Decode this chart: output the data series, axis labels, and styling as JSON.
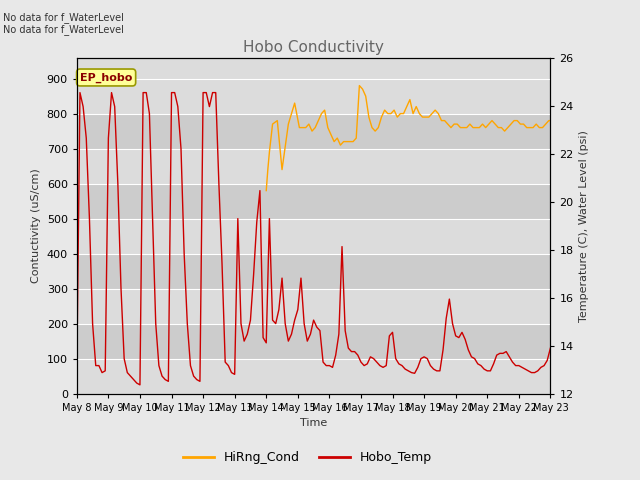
{
  "title": "Hobo Conductivity",
  "xlabel": "Time",
  "ylabel_left": "Contuctivity (uS/cm)",
  "ylabel_right": "Temperature (C), Water Level (psi)",
  "annotation_text": "No data for f_WaterLevel\nNo data for f_WaterLevel",
  "ep_hobo_label": "EP_hobo",
  "legend_entries": [
    "HiRng_Cond",
    "Hobo_Temp"
  ],
  "legend_colors": [
    "#FFA500",
    "#CC0000"
  ],
  "ylim_left": [
    0,
    960
  ],
  "ylim_right": [
    12,
    26
  ],
  "yticks_left": [
    0,
    100,
    200,
    300,
    400,
    500,
    600,
    700,
    800,
    900
  ],
  "yticks_right": [
    12,
    14,
    16,
    18,
    20,
    22,
    24,
    26
  ],
  "xtick_labels": [
    "May 8",
    "May 9",
    "May 10",
    "May 11",
    "May 12",
    "May 13",
    "May 14",
    "May 15",
    "May 16",
    "May 17",
    "May 18",
    "May 19",
    "May 20",
    "May 21",
    "May 22",
    "May 23"
  ],
  "bg_color": "#E8E8E8",
  "plot_bg_color": "#DCDCDC",
  "band_color": "#C8C8C8",
  "title_color": "#666666",
  "hobo_cond_color": "#FFA500",
  "hobo_temp_color": "#CC0000",
  "hobo_cond_x": [
    14.0,
    14.05,
    14.1,
    14.2,
    14.35,
    14.5,
    14.7,
    14.9,
    15.05,
    15.15,
    15.25,
    15.35,
    15.45,
    15.55,
    15.65,
    15.75,
    15.85,
    15.95,
    16.05,
    16.15,
    16.25,
    16.35,
    16.45,
    16.55,
    16.65,
    16.75,
    16.85,
    16.95,
    17.05,
    17.15,
    17.25,
    17.35,
    17.45,
    17.55,
    17.65,
    17.75,
    17.85,
    17.95,
    18.05,
    18.15,
    18.25,
    18.35,
    18.45,
    18.55,
    18.65,
    18.75,
    18.85,
    18.95,
    19.05,
    19.15,
    19.25,
    19.35,
    19.45,
    19.55,
    19.65,
    19.75,
    19.85,
    19.95,
    20.05,
    20.15,
    20.25,
    20.35,
    20.45,
    20.55,
    20.65,
    20.75,
    20.85,
    20.95,
    21.05,
    21.15,
    21.25,
    21.35,
    21.45,
    21.55,
    21.65,
    21.75,
    21.85,
    21.95,
    22.05,
    22.15,
    22.25,
    22.35,
    22.45,
    22.55,
    22.65,
    22.75,
    22.85,
    22.95,
    23.0
  ],
  "hobo_cond_y": [
    580,
    640,
    690,
    770,
    780,
    640,
    770,
    830,
    760,
    760,
    760,
    770,
    750,
    760,
    780,
    800,
    810,
    760,
    740,
    720,
    730,
    710,
    720,
    720,
    720,
    720,
    730,
    880,
    870,
    850,
    790,
    760,
    750,
    760,
    790,
    810,
    800,
    800,
    810,
    790,
    800,
    800,
    820,
    840,
    800,
    820,
    800,
    790,
    790,
    790,
    800,
    810,
    800,
    780,
    780,
    770,
    760,
    770,
    770,
    760,
    760,
    760,
    770,
    760,
    760,
    760,
    770,
    760,
    770,
    780,
    770,
    760,
    760,
    750,
    760,
    770,
    780,
    780,
    770,
    770,
    760,
    760,
    760,
    770,
    760,
    760,
    770,
    780,
    780
  ],
  "hobo_temp_x": [
    8.0,
    8.1,
    8.2,
    8.3,
    8.4,
    8.5,
    8.6,
    8.7,
    8.8,
    8.9,
    9.0,
    9.1,
    9.2,
    9.3,
    9.4,
    9.5,
    9.6,
    9.7,
    9.8,
    9.9,
    10.0,
    10.1,
    10.2,
    10.3,
    10.4,
    10.5,
    10.6,
    10.7,
    10.8,
    10.9,
    11.0,
    11.1,
    11.2,
    11.3,
    11.4,
    11.5,
    11.6,
    11.7,
    11.8,
    11.9,
    12.0,
    12.1,
    12.2,
    12.3,
    12.4,
    12.5,
    12.6,
    12.7,
    12.8,
    12.9,
    13.0,
    13.1,
    13.2,
    13.3,
    13.4,
    13.5,
    13.6,
    13.7,
    13.8,
    13.9,
    14.0,
    14.1,
    14.2,
    14.3,
    14.4,
    14.5,
    14.6,
    14.7,
    14.8,
    14.9,
    15.0,
    15.1,
    15.2,
    15.3,
    15.4,
    15.5,
    15.6,
    15.7,
    15.8,
    15.9,
    16.0,
    16.1,
    16.2,
    16.3,
    16.4,
    16.5,
    16.6,
    16.7,
    16.8,
    16.9,
    17.0,
    17.1,
    17.2,
    17.3,
    17.4,
    17.5,
    17.6,
    17.7,
    17.8,
    17.9,
    18.0,
    18.1,
    18.2,
    18.3,
    18.4,
    18.5,
    18.6,
    18.7,
    18.8,
    18.9,
    19.0,
    19.1,
    19.2,
    19.3,
    19.4,
    19.5,
    19.6,
    19.7,
    19.8,
    19.9,
    20.0,
    20.1,
    20.2,
    20.3,
    20.4,
    20.5,
    20.6,
    20.7,
    20.8,
    20.9,
    21.0,
    21.1,
    21.2,
    21.3,
    21.4,
    21.5,
    21.6,
    21.7,
    21.8,
    21.9,
    22.0,
    22.1,
    22.2,
    22.3,
    22.4,
    22.5,
    22.6,
    22.7,
    22.8,
    22.9,
    23.0
  ],
  "hobo_temp_y": [
    60,
    860,
    820,
    730,
    500,
    200,
    80,
    80,
    60,
    65,
    730,
    860,
    820,
    600,
    300,
    100,
    60,
    50,
    40,
    30,
    25,
    860,
    860,
    800,
    500,
    200,
    80,
    50,
    40,
    35,
    860,
    860,
    820,
    700,
    400,
    200,
    80,
    50,
    40,
    35,
    860,
    860,
    820,
    860,
    860,
    600,
    370,
    90,
    80,
    60,
    55,
    500,
    200,
    150,
    170,
    210,
    340,
    490,
    580,
    160,
    145,
    500,
    210,
    200,
    240,
    330,
    200,
    150,
    170,
    210,
    240,
    330,
    200,
    150,
    170,
    210,
    190,
    180,
    90,
    80,
    80,
    75,
    110,
    170,
    420,
    180,
    130,
    120,
    120,
    110,
    90,
    80,
    85,
    105,
    100,
    90,
    80,
    75,
    80,
    165,
    175,
    100,
    85,
    80,
    70,
    65,
    60,
    58,
    75,
    100,
    105,
    100,
    80,
    70,
    65,
    65,
    125,
    215,
    270,
    200,
    165,
    160,
    175,
    155,
    125,
    105,
    100,
    85,
    80,
    70,
    65,
    65,
    85,
    110,
    115,
    115,
    120,
    105,
    90,
    80,
    80,
    75,
    70,
    65,
    60,
    60,
    65,
    75,
    80,
    95,
    130
  ],
  "xlim": [
    8.0,
    23.0
  ],
  "xtick_positions": [
    8,
    9,
    10,
    11,
    12,
    13,
    14,
    15,
    16,
    17,
    18,
    19,
    20,
    21,
    22,
    23
  ]
}
